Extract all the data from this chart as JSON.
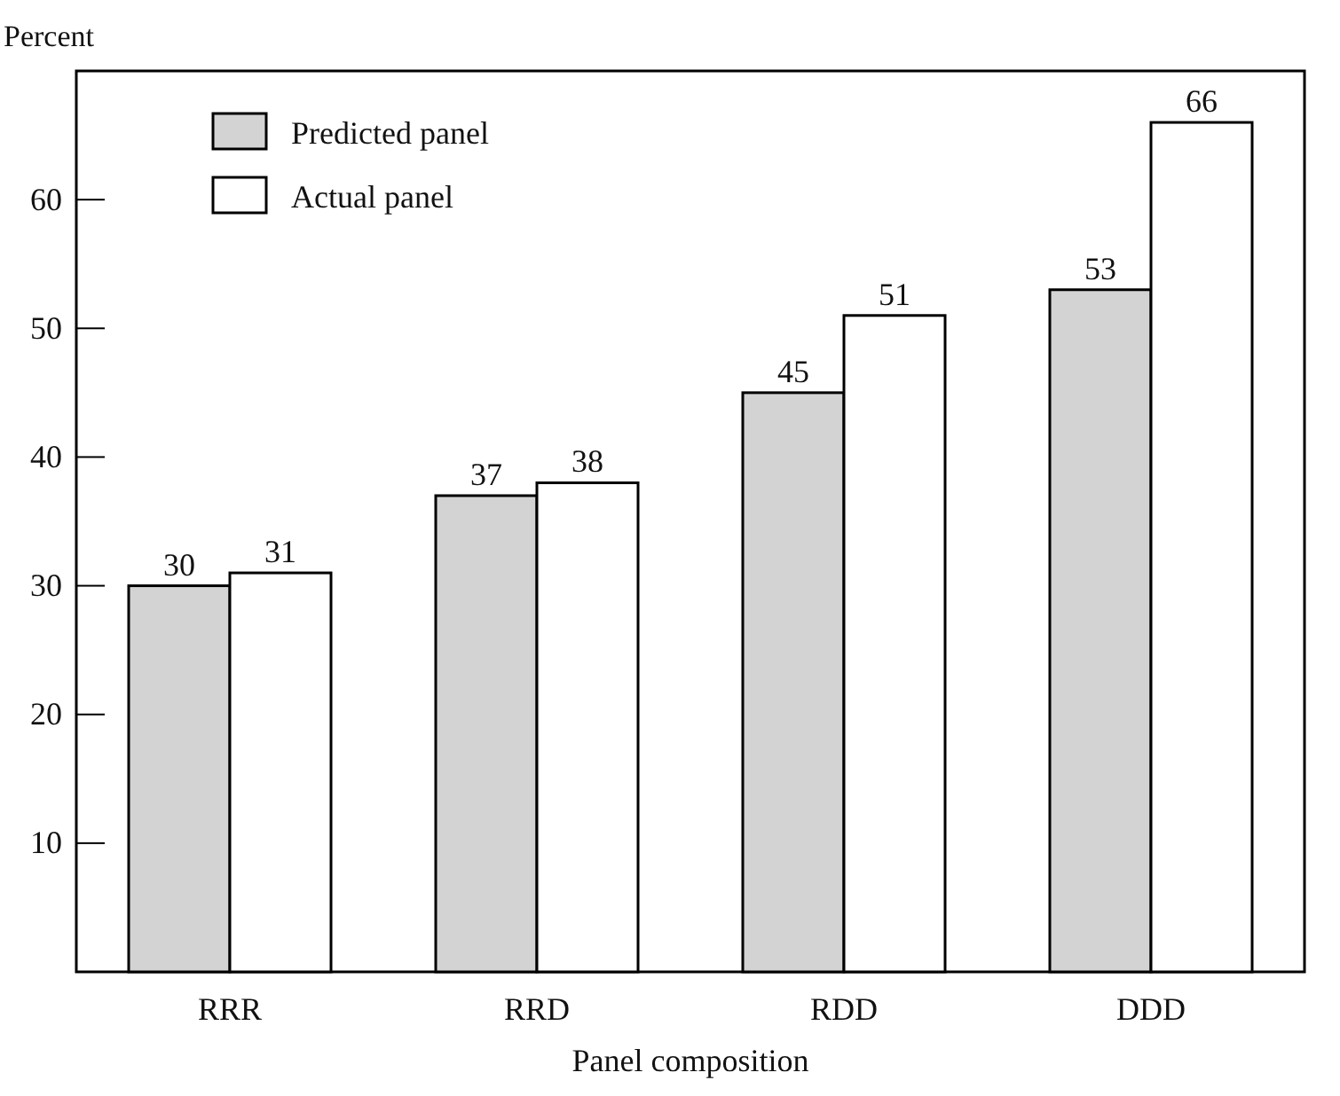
{
  "chart_data": {
    "type": "bar",
    "ylabel": "Percent",
    "xlabel": "Panel composition",
    "categories": [
      "RRR",
      "RRD",
      "RDD",
      "DDD"
    ],
    "series": [
      {
        "name": "Predicted panel",
        "color": "#d3d3d3",
        "values": [
          30,
          37,
          45,
          53
        ]
      },
      {
        "name": "Actual panel",
        "color": "#ffffff",
        "values": [
          31,
          38,
          51,
          66
        ]
      }
    ],
    "ylim": [
      0,
      70
    ],
    "yticks": [
      10,
      20,
      30,
      40,
      50,
      60
    ],
    "data_labels": true,
    "grid": false,
    "legend": "top left"
  }
}
